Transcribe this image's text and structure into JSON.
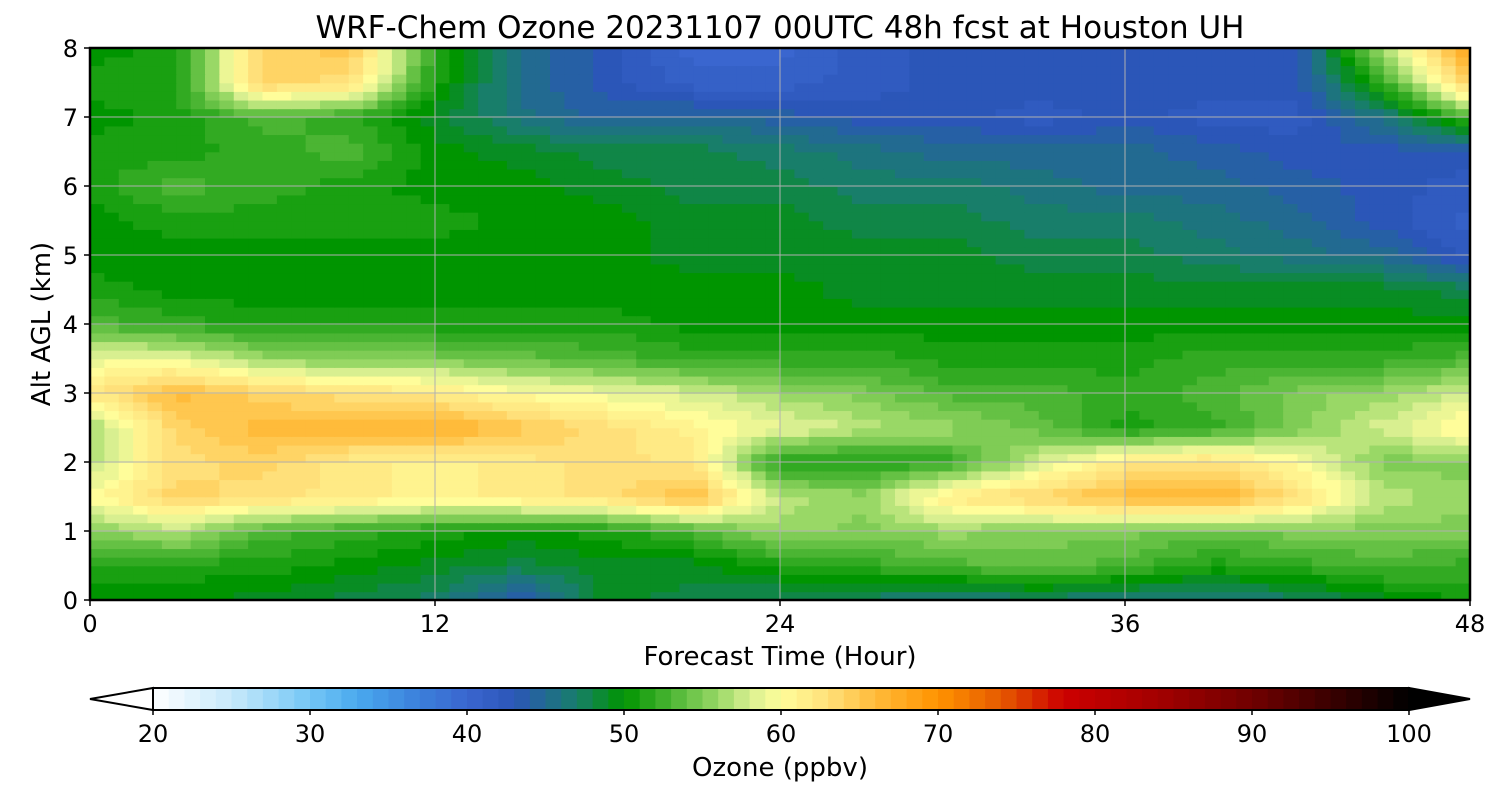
{
  "chart_data": {
    "type": "heatmap",
    "title": "WRF-Chem Ozone  20231107 00UTC 48h fcst at Houston UH",
    "xlabel": "Forecast Time (Hour)",
    "ylabel": "Alt AGL (km)",
    "xlim": [
      0,
      48
    ],
    "ylim": [
      0,
      8
    ],
    "x_ticks": [
      "0",
      "12",
      "24",
      "36",
      "48"
    ],
    "y_ticks": [
      "0",
      "1",
      "2",
      "3",
      "4",
      "5",
      "6",
      "7",
      "8"
    ],
    "grid": true,
    "x_hours": [
      0,
      3,
      6,
      9,
      12,
      15,
      18,
      21,
      24,
      27,
      30,
      33,
      36,
      39,
      42,
      45,
      48
    ],
    "alt_km": [
      0,
      0.5,
      1,
      1.5,
      2,
      2.5,
      3,
      3.5,
      4,
      4.5,
      5,
      5.5,
      6,
      6.5,
      7,
      7.5,
      8
    ],
    "ozone_ppbv": [
      [
        50,
        50,
        49,
        48,
        47,
        43,
        49,
        48,
        47,
        47,
        46,
        47,
        46,
        46,
        47,
        49,
        51
      ],
      [
        51,
        51,
        51,
        50,
        49,
        48,
        49,
        49,
        51,
        52,
        53,
        54,
        53,
        51,
        52,
        53,
        52
      ],
      [
        55,
        57,
        53,
        52,
        51,
        50,
        51,
        53,
        56,
        55,
        56,
        55,
        55,
        54,
        55,
        55,
        55
      ],
      [
        60,
        64,
        63,
        62,
        61,
        62,
        63,
        66,
        57,
        56,
        62,
        64,
        66,
        67,
        63,
        57,
        56
      ],
      [
        57,
        63,
        64,
        62,
        61,
        62,
        63,
        62,
        51,
        51,
        52,
        58,
        62,
        63,
        60,
        55,
        55
      ],
      [
        56,
        64,
        66,
        66,
        67,
        65,
        63,
        61,
        59,
        57,
        56,
        54,
        51,
        52,
        55,
        58,
        61
      ],
      [
        62,
        66,
        64,
        63,
        62,
        60,
        59,
        58,
        56,
        55,
        53,
        53,
        52,
        53,
        55,
        56,
        58
      ],
      [
        59,
        59,
        56,
        55,
        55,
        54,
        53,
        52,
        52,
        52,
        51,
        51,
        51,
        52,
        52,
        52,
        53
      ],
      [
        53,
        52,
        51,
        51,
        51,
        51,
        51,
        50,
        50,
        50,
        50,
        50,
        50,
        50,
        50,
        50,
        50
      ],
      [
        51,
        50,
        50,
        50,
        50,
        50,
        50,
        50,
        50,
        49,
        49,
        49,
        49,
        49,
        49,
        49,
        48
      ],
      [
        50,
        50,
        50,
        50,
        50,
        50,
        50,
        49,
        49,
        49,
        49,
        48,
        48,
        47,
        46,
        45,
        42
      ],
      [
        50,
        51,
        51,
        51,
        51,
        50,
        50,
        49,
        49,
        48,
        48,
        47,
        47,
        46,
        45,
        43,
        41
      ],
      [
        51,
        53,
        52,
        51,
        50,
        50,
        49,
        48,
        48,
        47,
        47,
        46,
        45,
        45,
        44,
        43,
        42
      ],
      [
        51,
        51,
        52,
        53,
        50,
        49,
        48,
        48,
        47,
        46,
        45,
        45,
        45,
        44,
        43,
        43,
        43
      ],
      [
        50,
        51,
        53,
        52,
        49,
        46,
        44,
        45,
        44,
        43,
        43,
        42,
        43,
        42,
        42,
        46,
        53
      ],
      [
        51,
        51,
        64,
        63,
        51,
        45,
        43,
        41,
        41,
        42,
        43,
        43,
        43,
        43,
        43,
        52,
        65
      ],
      [
        50,
        51,
        64,
        65,
        52,
        45,
        43,
        40,
        40,
        42,
        43,
        43,
        43,
        43,
        43,
        57,
        68
      ]
    ],
    "colorbar": {
      "label": "Ozone  (ppbv)",
      "min": 20,
      "max": 100,
      "extend": "both",
      "ticks": [
        "20",
        "30",
        "40",
        "50",
        "60",
        "70",
        "80",
        "90",
        "100"
      ],
      "stops": [
        {
          "v": 20,
          "c": "#ffffff"
        },
        {
          "v": 25,
          "c": "#c7e9fb"
        },
        {
          "v": 30,
          "c": "#74c6f5"
        },
        {
          "v": 33,
          "c": "#4aa9ee"
        },
        {
          "v": 37,
          "c": "#3b7fda"
        },
        {
          "v": 40,
          "c": "#3a66cf"
        },
        {
          "v": 43,
          "c": "#2b56b8"
        },
        {
          "v": 47,
          "c": "#187e6a"
        },
        {
          "v": 50,
          "c": "#009500"
        },
        {
          "v": 53,
          "c": "#4bb533"
        },
        {
          "v": 56,
          "c": "#99d866"
        },
        {
          "v": 58,
          "c": "#d8ef90"
        },
        {
          "v": 60,
          "c": "#fffd9a"
        },
        {
          "v": 63,
          "c": "#ffe07a"
        },
        {
          "v": 66,
          "c": "#ffbb3a"
        },
        {
          "v": 70,
          "c": "#ff9300"
        },
        {
          "v": 74,
          "c": "#e65a00"
        },
        {
          "v": 78,
          "c": "#cc0000"
        },
        {
          "v": 84,
          "c": "#a30000"
        },
        {
          "v": 90,
          "c": "#700000"
        },
        {
          "v": 95,
          "c": "#3a0000"
        },
        {
          "v": 100,
          "c": "#000000"
        }
      ]
    }
  }
}
